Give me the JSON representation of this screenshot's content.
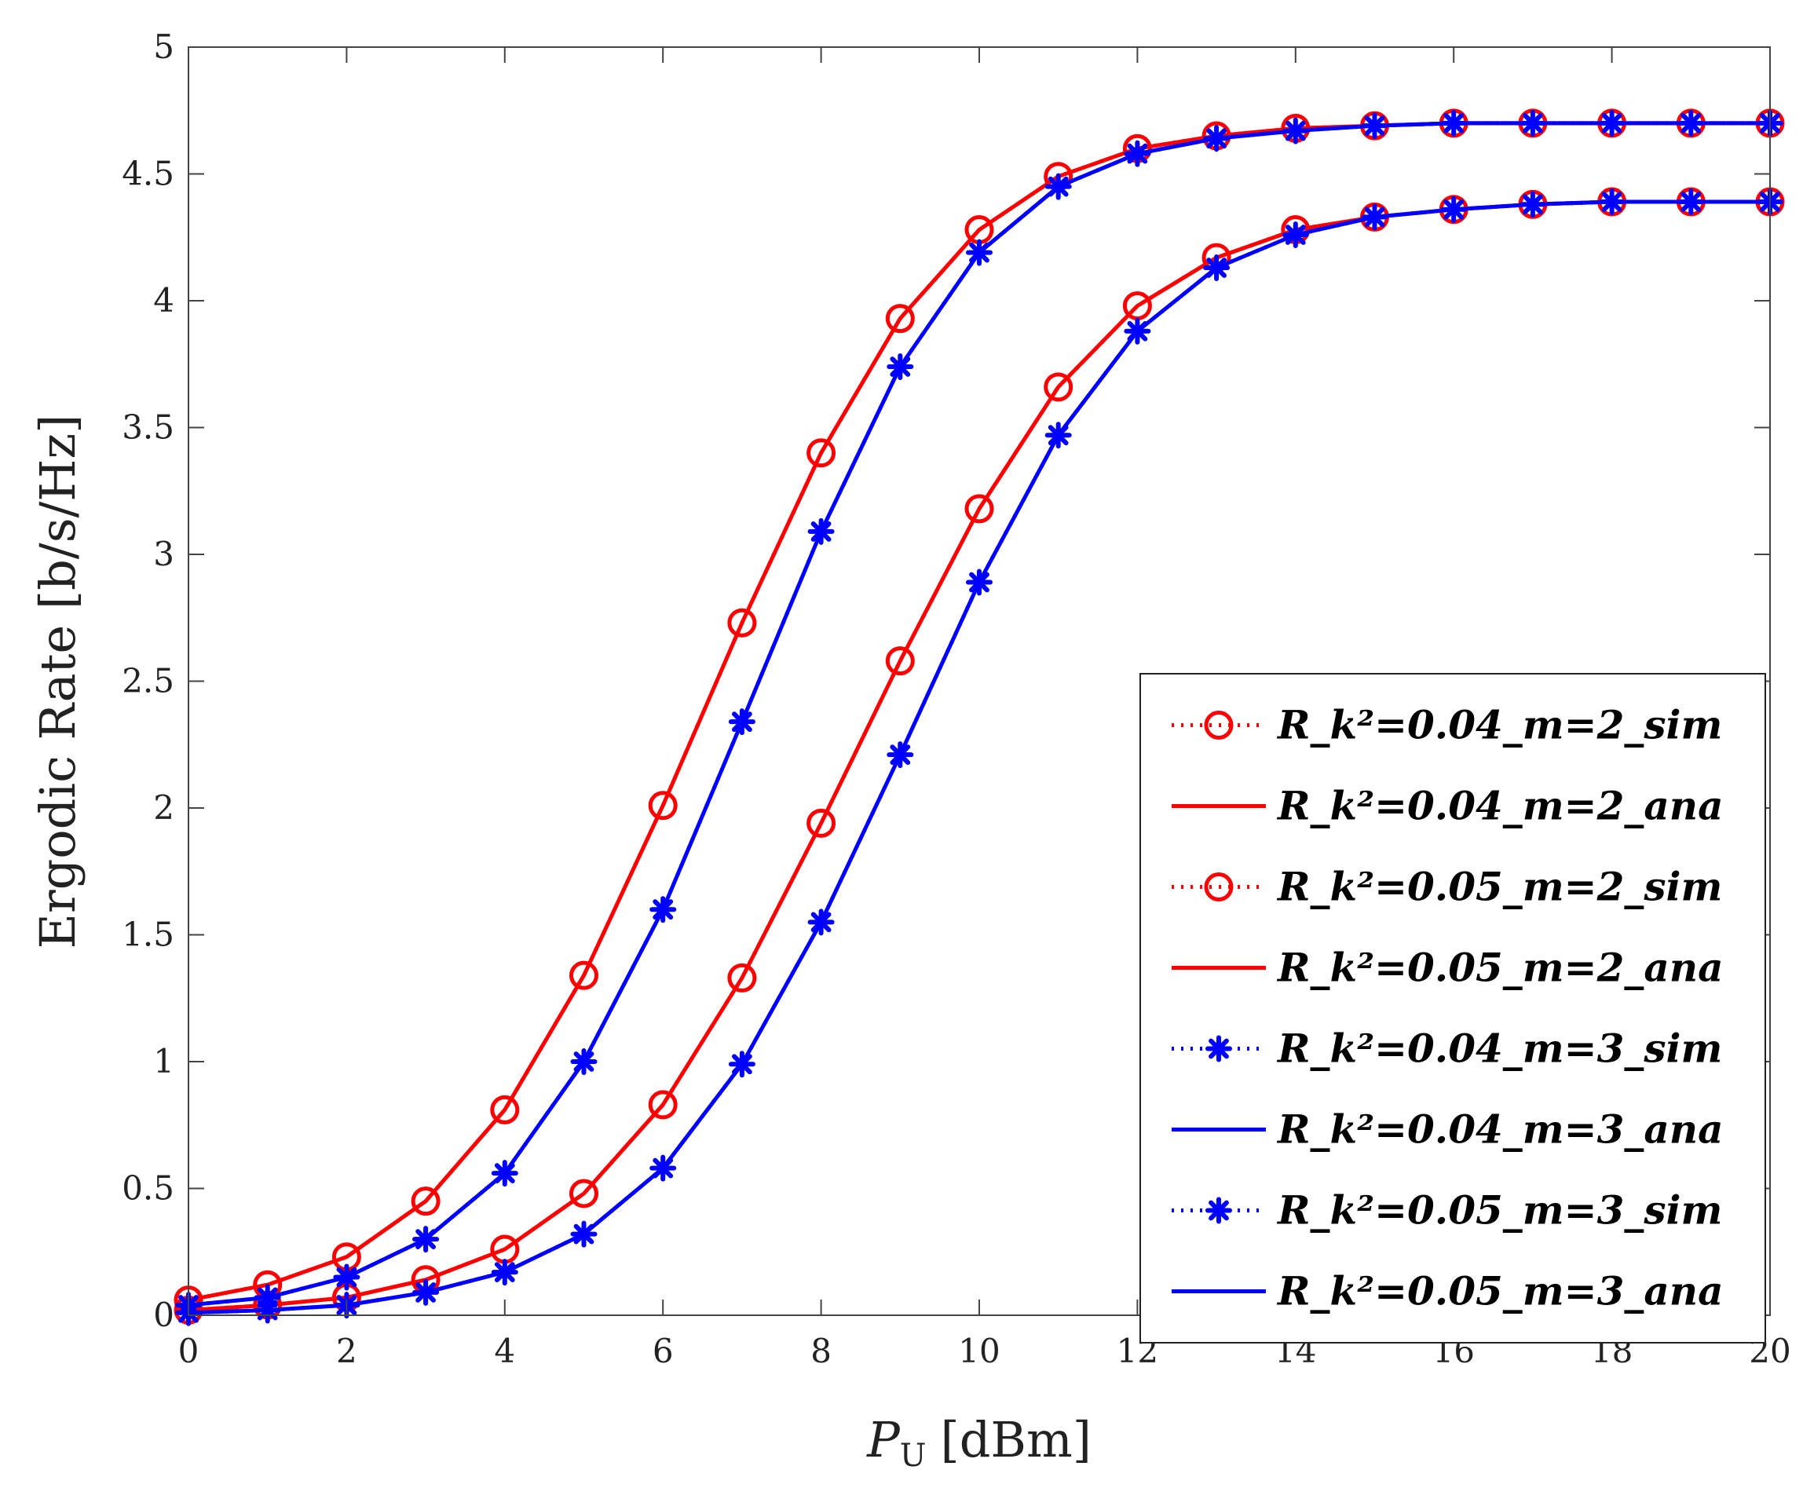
{
  "chart_data": {
    "type": "line",
    "title": "",
    "xlabel_symbol": "P",
    "xlabel_subscript": "U",
    "xlabel_unit": "[dBm]",
    "ylabel": "Ergodic Rate [b/s/Hz]",
    "xlim": [
      0,
      20
    ],
    "ylim": [
      0,
      5
    ],
    "x_ticks": [
      0,
      2,
      4,
      6,
      8,
      10,
      12,
      14,
      16,
      18,
      20
    ],
    "y_ticks": [
      0,
      0.5,
      1,
      1.5,
      2,
      2.5,
      3,
      3.5,
      4,
      4.5,
      5
    ],
    "y_tick_labels": [
      "0",
      "0.5",
      "1",
      "1.5",
      "2",
      "2.5",
      "3",
      "3.5",
      "4",
      "4.5",
      "5"
    ],
    "grid": false,
    "legend_position": "lower-right",
    "x": [
      0,
      1,
      2,
      3,
      4,
      5,
      6,
      7,
      8,
      9,
      10,
      11,
      12,
      13,
      14,
      15,
      16,
      17,
      18,
      19,
      20
    ],
    "series": [
      {
        "name": "R_k²=0.04_m=2_sim",
        "color": "#ff0000",
        "line": "dotted",
        "marker": "circle",
        "values": [
          0.06,
          0.12,
          0.23,
          0.45,
          0.81,
          1.34,
          2.01,
          2.73,
          3.4,
          3.93,
          4.28,
          4.49,
          4.6,
          4.65,
          4.68,
          4.69,
          4.7,
          4.7,
          4.7,
          4.7,
          4.7
        ]
      },
      {
        "name": "R_k²=0.04_m=2_ana",
        "color": "#ff0000",
        "line": "solid",
        "marker": "none",
        "values": [
          0.06,
          0.12,
          0.23,
          0.45,
          0.81,
          1.34,
          2.01,
          2.73,
          3.4,
          3.93,
          4.28,
          4.49,
          4.6,
          4.65,
          4.68,
          4.69,
          4.7,
          4.7,
          4.7,
          4.7,
          4.7
        ]
      },
      {
        "name": "R_k²=0.05_m=2_sim",
        "color": "#ff0000",
        "line": "dotted",
        "marker": "circle",
        "values": [
          0.02,
          0.04,
          0.07,
          0.14,
          0.26,
          0.48,
          0.83,
          1.33,
          1.94,
          2.58,
          3.18,
          3.66,
          3.98,
          4.17,
          4.28,
          4.33,
          4.36,
          4.38,
          4.39,
          4.39,
          4.39
        ]
      },
      {
        "name": "R_k²=0.05_m=2_ana",
        "color": "#ff0000",
        "line": "solid",
        "marker": "none",
        "values": [
          0.02,
          0.04,
          0.07,
          0.14,
          0.26,
          0.48,
          0.83,
          1.33,
          1.94,
          2.58,
          3.18,
          3.66,
          3.98,
          4.17,
          4.28,
          4.33,
          4.36,
          4.38,
          4.39,
          4.39,
          4.39
        ]
      },
      {
        "name": "R_k²=0.04_m=3_sim",
        "color": "#0000ff",
        "line": "dotted",
        "marker": "asterisk",
        "values": [
          0.04,
          0.07,
          0.15,
          0.3,
          0.56,
          1.0,
          1.6,
          2.34,
          3.09,
          3.74,
          4.19,
          4.45,
          4.58,
          4.64,
          4.67,
          4.69,
          4.7,
          4.7,
          4.7,
          4.7,
          4.7
        ]
      },
      {
        "name": "R_k²=0.04_m=3_ana",
        "color": "#0000ff",
        "line": "solid",
        "marker": "none",
        "values": [
          0.04,
          0.07,
          0.15,
          0.3,
          0.56,
          1.0,
          1.6,
          2.34,
          3.09,
          3.74,
          4.19,
          4.45,
          4.58,
          4.64,
          4.67,
          4.69,
          4.7,
          4.7,
          4.7,
          4.7,
          4.7
        ]
      },
      {
        "name": "R_k²=0.05_m=3_sim",
        "color": "#0000ff",
        "line": "dotted",
        "marker": "asterisk",
        "values": [
          0.01,
          0.02,
          0.04,
          0.09,
          0.17,
          0.32,
          0.58,
          0.99,
          1.55,
          2.21,
          2.89,
          3.47,
          3.88,
          4.13,
          4.26,
          4.33,
          4.36,
          4.38,
          4.39,
          4.39,
          4.39
        ]
      },
      {
        "name": "R_k²=0.05_m=3_ana",
        "color": "#0000ff",
        "line": "solid",
        "marker": "none",
        "values": [
          0.01,
          0.02,
          0.04,
          0.09,
          0.17,
          0.32,
          0.58,
          0.99,
          1.55,
          2.21,
          2.89,
          3.47,
          3.88,
          4.13,
          4.26,
          4.33,
          4.36,
          4.38,
          4.39,
          4.39,
          4.39
        ]
      }
    ]
  }
}
